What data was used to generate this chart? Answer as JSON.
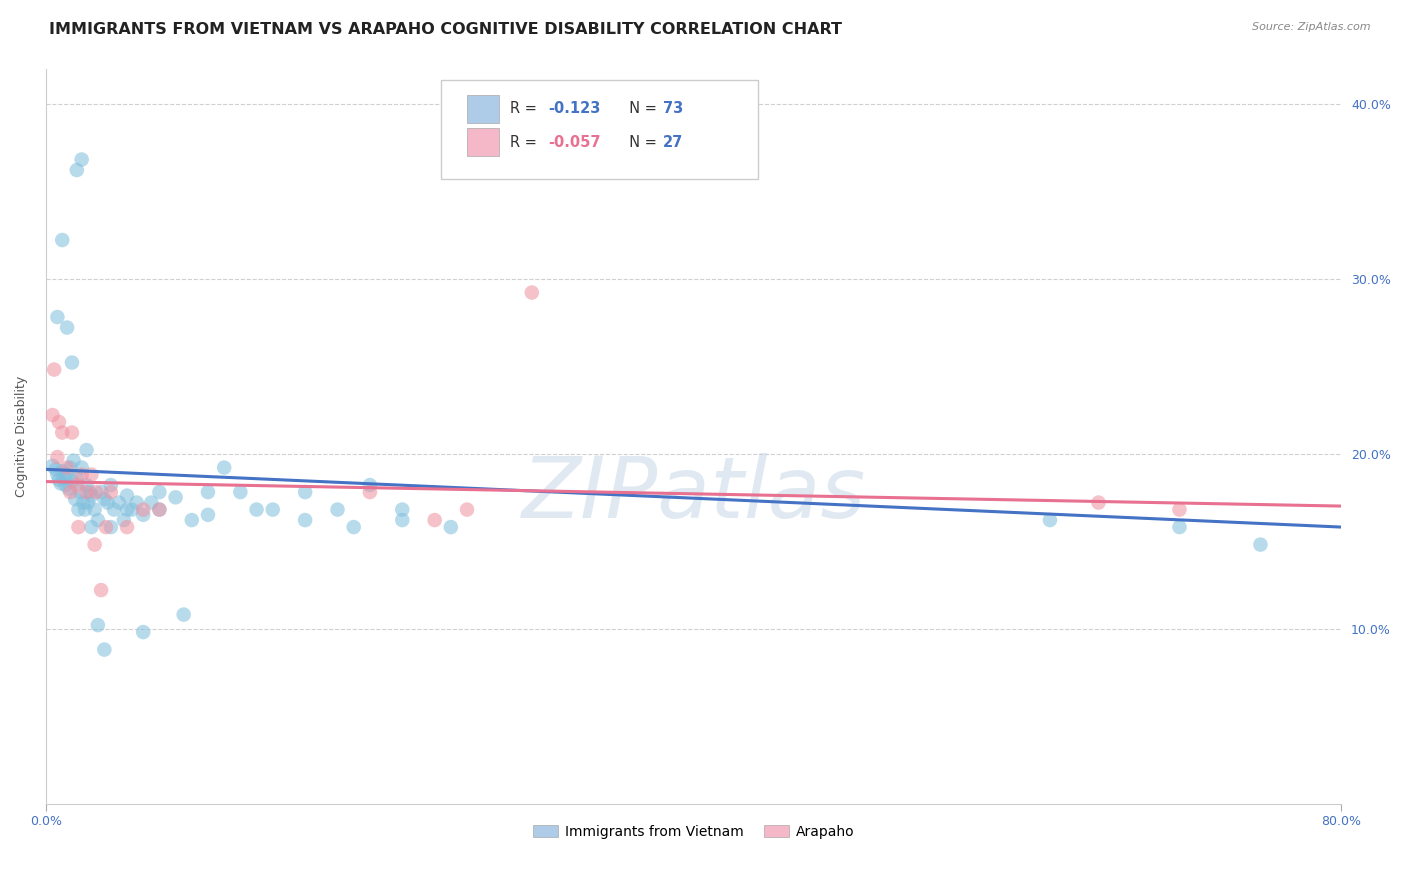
{
  "title": "IMMIGRANTS FROM VIETNAM VS ARAPAHO COGNITIVE DISABILITY CORRELATION CHART",
  "source": "Source: ZipAtlas.com",
  "ylabel": "Cognitive Disability",
  "xlim": [
    0.0,
    0.8
  ],
  "ylim": [
    0.0,
    0.42
  ],
  "xticks": [
    0.0,
    0.8
  ],
  "xticklabels": [
    "0.0%",
    "80.0%"
  ],
  "yticks_right": [
    0.1,
    0.2,
    0.3,
    0.4
  ],
  "yticklabels_right": [
    "10.0%",
    "20.0%",
    "30.0%",
    "40.0%"
  ],
  "grid_yticks": [
    0.1,
    0.2,
    0.3,
    0.4
  ],
  "bottom_legend": [
    "Immigrants from Vietnam",
    "Arapaho"
  ],
  "blue_color": "#7fbfdd",
  "pink_color": "#f090a0",
  "blue_scatter_alpha": 0.55,
  "pink_scatter_alpha": 0.55,
  "blue_line_color": "#4472c4",
  "pink_line_color": "#e87090",
  "blue_legend_color": "#aecce8",
  "pink_legend_color": "#f4b8c8",
  "watermark_text": "ZIPatlas",
  "watermark_color": "#c8d8e8",
  "watermark_alpha": 0.55,
  "blue_scatter_x": [
    0.004,
    0.006,
    0.007,
    0.008,
    0.009,
    0.01,
    0.011,
    0.012,
    0.013,
    0.014,
    0.015,
    0.016,
    0.017,
    0.018,
    0.019,
    0.02,
    0.021,
    0.022,
    0.023,
    0.024,
    0.025,
    0.026,
    0.027,
    0.028,
    0.03,
    0.032,
    0.034,
    0.036,
    0.038,
    0.04,
    0.042,
    0.045,
    0.048,
    0.05,
    0.053,
    0.056,
    0.06,
    0.065,
    0.07,
    0.08,
    0.09,
    0.1,
    0.11,
    0.12,
    0.14,
    0.16,
    0.18,
    0.2,
    0.22,
    0.25,
    0.007,
    0.01,
    0.013,
    0.016,
    0.019,
    0.022,
    0.025,
    0.028,
    0.032,
    0.036,
    0.04,
    0.05,
    0.06,
    0.07,
    0.085,
    0.1,
    0.13,
    0.16,
    0.19,
    0.22,
    0.62,
    0.7,
    0.75
  ],
  "blue_scatter_y": [
    0.193,
    0.191,
    0.188,
    0.185,
    0.183,
    0.19,
    0.186,
    0.182,
    0.188,
    0.18,
    0.192,
    0.184,
    0.196,
    0.174,
    0.186,
    0.168,
    0.178,
    0.192,
    0.172,
    0.168,
    0.182,
    0.172,
    0.178,
    0.176,
    0.168,
    0.162,
    0.178,
    0.174,
    0.172,
    0.182,
    0.168,
    0.172,
    0.162,
    0.176,
    0.168,
    0.172,
    0.165,
    0.172,
    0.168,
    0.175,
    0.162,
    0.165,
    0.192,
    0.178,
    0.168,
    0.178,
    0.168,
    0.182,
    0.168,
    0.158,
    0.278,
    0.322,
    0.272,
    0.252,
    0.362,
    0.368,
    0.202,
    0.158,
    0.102,
    0.088,
    0.158,
    0.168,
    0.098,
    0.178,
    0.108,
    0.178,
    0.168,
    0.162,
    0.158,
    0.162,
    0.162,
    0.158,
    0.148
  ],
  "pink_scatter_x": [
    0.004,
    0.007,
    0.01,
    0.013,
    0.016,
    0.019,
    0.022,
    0.025,
    0.028,
    0.031,
    0.034,
    0.037,
    0.04,
    0.05,
    0.06,
    0.07,
    0.2,
    0.24,
    0.26,
    0.3,
    0.005,
    0.008,
    0.015,
    0.02,
    0.03,
    0.65,
    0.7
  ],
  "pink_scatter_y": [
    0.222,
    0.198,
    0.212,
    0.192,
    0.212,
    0.182,
    0.188,
    0.178,
    0.188,
    0.178,
    0.122,
    0.158,
    0.178,
    0.158,
    0.168,
    0.168,
    0.178,
    0.162,
    0.168,
    0.292,
    0.248,
    0.218,
    0.178,
    0.158,
    0.148,
    0.172,
    0.168
  ],
  "blue_trend_x": [
    0.0,
    0.8
  ],
  "blue_trend_y": [
    0.191,
    0.158
  ],
  "pink_trend_x": [
    0.0,
    0.8
  ],
  "pink_trend_y": [
    0.184,
    0.17
  ],
  "background_color": "#ffffff",
  "grid_color": "#d0d0d0",
  "title_fontsize": 11.5,
  "axis_label_fontsize": 9,
  "tick_fontsize": 9,
  "scatter_size": 110,
  "r1_val": "-0.123",
  "n1_val": "73",
  "r2_val": "-0.057",
  "n2_val": "27"
}
